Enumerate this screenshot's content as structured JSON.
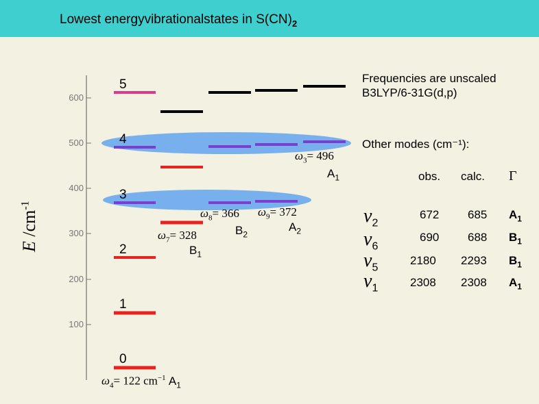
{
  "title": {
    "main": "Lowest energyvibrationalstates in S(CN)",
    "sub": "2"
  },
  "axis": {
    "ylabel_main": "E",
    "ylabel_unit": " /cm",
    "ylabel_exp": "-1",
    "ticks": [
      "600",
      "500",
      "400",
      "300",
      "200",
      "100"
    ]
  },
  "levels": {
    "col1": [
      "5",
      "4",
      "3",
      "2",
      "1",
      "0"
    ]
  },
  "bands": {
    "w3": {
      "omega": "ω",
      "sub": "3",
      "value": "= 496",
      "sym": "A",
      "symsub": "1"
    },
    "w7": {
      "omega": "ω",
      "sub": "7",
      "value": "= 328",
      "sym": "B",
      "symsub": "1"
    },
    "w8": {
      "omega": "ω",
      "sub": "8",
      "value": "= 366",
      "sym": "B",
      "symsub": "2"
    },
    "w9": {
      "omega": "ω",
      "sub": "9",
      "value": "= 372",
      "sym": "A",
      "symsub": "2"
    },
    "w4": {
      "omega": "ω",
      "sub": "4",
      "value": "= 122 cm",
      "exp": "−1",
      "sym": "A",
      "symsub": "1"
    }
  },
  "notes": {
    "freq_line1": "Frequencies are unscaled",
    "freq_line2": "B3LYP/6-31G(d,p)",
    "other_modes": "Other modes (cm⁻¹):"
  },
  "table": {
    "headers": [
      "obs.",
      "calc.",
      "Γ"
    ],
    "rows": [
      {
        "nu": "ν",
        "nusub": "2",
        "obs": "672",
        "calc": "685",
        "g": "A",
        "gsub": "1"
      },
      {
        "nu": "ν",
        "nusub": "6",
        "obs": "690",
        "calc": "688",
        "g": "B",
        "gsub": "1"
      },
      {
        "nu": "ν",
        "nusub": "5",
        "obs": "2180",
        "calc": "2293",
        "g": "B",
        "gsub": "1"
      },
      {
        "nu": "ν",
        "nusub": "1",
        "obs": "2308",
        "calc": "2308",
        "g": "A",
        "gsub": "1"
      }
    ]
  },
  "colors": {
    "header": "#3fcfcf",
    "red": "#e8231f",
    "purple": "#7a3fd0",
    "magenta": "#e0388f",
    "black": "#000000",
    "ellipse": "#6aa8ee"
  }
}
